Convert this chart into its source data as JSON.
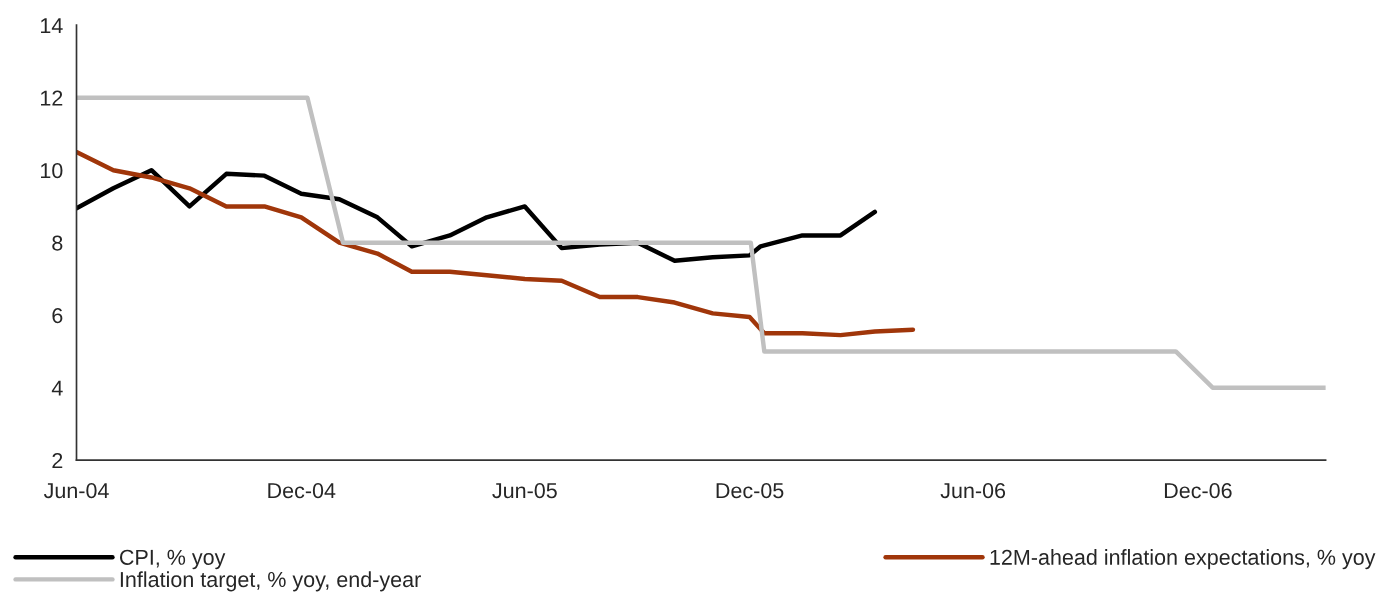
{
  "chart_data": {
    "type": "line",
    "xlim": [
      "2004-06-01",
      "2007-03-15"
    ],
    "xticks": [
      {
        "value": "2004-06-01",
        "label": "Jun-04"
      },
      {
        "value": "2004-12-01",
        "label": "Dec-04"
      },
      {
        "value": "2005-06-01",
        "label": "Jun-05"
      },
      {
        "value": "2005-12-01",
        "label": "Dec-05"
      },
      {
        "value": "2006-06-01",
        "label": "Jun-06"
      },
      {
        "value": "2006-12-01",
        "label": "Dec-06"
      }
    ],
    "ylim": [
      2,
      14
    ],
    "yticks": [
      2,
      4,
      6,
      8,
      10,
      12,
      14
    ],
    "grid": false,
    "legend": "bottom",
    "marker": "none",
    "line_style": "solid",
    "series": [
      {
        "name": "CPI, % yoy",
        "color": "#000000",
        "x": [
          "2004-06-01",
          "2004-07-01",
          "2004-08-01",
          "2004-09-01",
          "2004-10-01",
          "2004-11-01",
          "2004-12-01",
          "2005-01-01",
          "2005-02-01",
          "2005-03-01",
          "2005-04-01",
          "2005-05-01",
          "2005-06-01",
          "2005-07-01",
          "2005-08-01",
          "2005-09-01",
          "2005-10-01",
          "2005-11-01",
          "2005-12-01",
          "2005-12-10",
          "2006-01-13",
          "2006-02-13",
          "2006-03-13"
        ],
        "values": [
          8.95,
          9.5,
          10.0,
          9.0,
          9.9,
          9.85,
          9.35,
          9.2,
          8.7,
          7.9,
          8.2,
          8.7,
          9.0,
          7.85,
          7.95,
          8.0,
          7.5,
          7.6,
          7.65,
          7.9,
          8.2,
          8.2,
          8.85
        ]
      },
      {
        "name": "12M-ahead inflation expectations, % yoy",
        "color": "#a0360a",
        "x": [
          "2004-06-01",
          "2004-07-01",
          "2004-08-01",
          "2004-09-01",
          "2004-10-01",
          "2004-11-01",
          "2004-12-01",
          "2005-01-01",
          "2005-02-01",
          "2005-03-01",
          "2005-04-01",
          "2005-05-01",
          "2005-06-01",
          "2005-07-01",
          "2005-08-01",
          "2005-09-01",
          "2005-10-01",
          "2005-11-01",
          "2005-12-01",
          "2005-12-13",
          "2006-01-13",
          "2006-02-13",
          "2006-03-13",
          "2006-04-13"
        ],
        "values": [
          10.5,
          10.0,
          9.8,
          9.5,
          9.0,
          9.0,
          8.7,
          8.0,
          7.7,
          7.2,
          7.2,
          7.1,
          7.0,
          6.95,
          6.5,
          6.5,
          6.35,
          6.05,
          5.95,
          5.5,
          5.5,
          5.45,
          5.55,
          5.6
        ]
      },
      {
        "name": "Inflation target, % yoy, end-year",
        "color": "#c0c0c0",
        "x": [
          "2004-06-01",
          "2004-12-06",
          "2005-01-04",
          "2005-12-02",
          "2005-12-13",
          "2006-11-13",
          "2006-12-13",
          "2007-03-15"
        ],
        "values": [
          12,
          12,
          8,
          8,
          5,
          5,
          4,
          4
        ]
      }
    ]
  }
}
